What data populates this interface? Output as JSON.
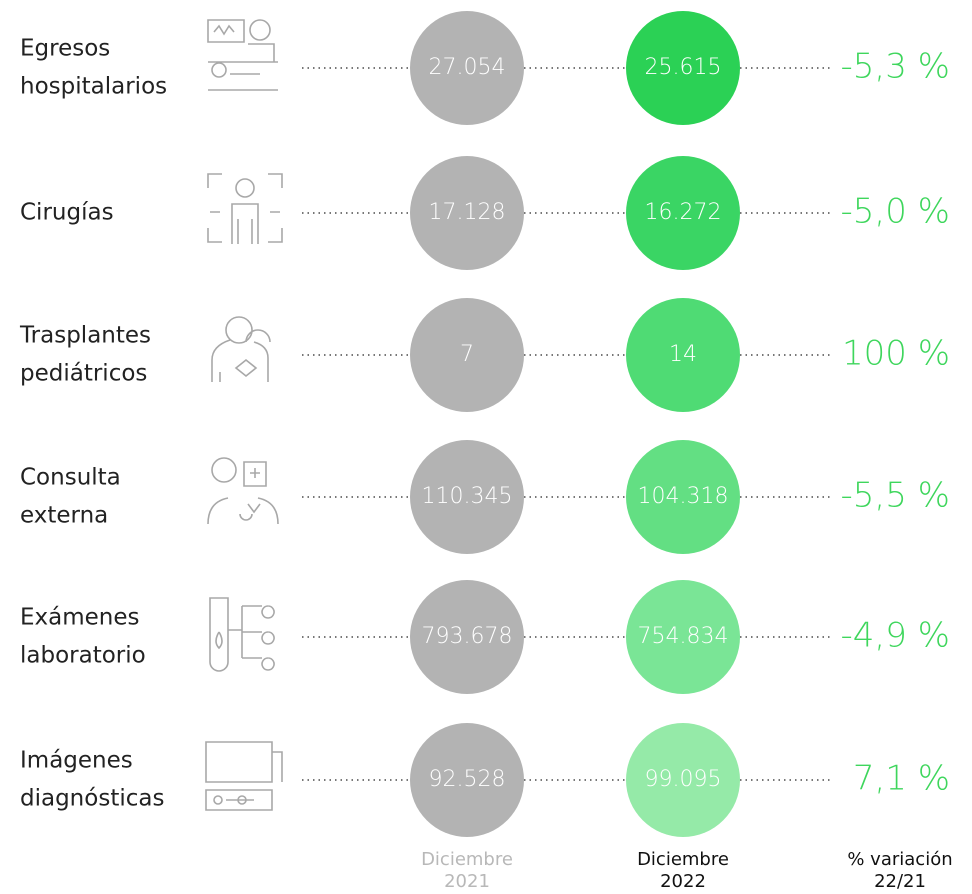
{
  "rows": [
    {
      "label": [
        "Egresos",
        "hospitalarios"
      ],
      "v2021": "27.054",
      "v2022": "25.615",
      "variation": "-5,3 %"
    },
    {
      "label": [
        "Cirugías"
      ],
      "v2021": "17.128",
      "v2022": "16.272",
      "variation": "-5,0 %"
    },
    {
      "label": [
        "Trasplantes",
        "pediátricos"
      ],
      "v2021": "7",
      "v2022": "14",
      "variation": "100 %"
    },
    {
      "label": [
        "Consulta",
        "externa"
      ],
      "v2021": "110.345",
      "v2022": "104.318",
      "variation": "-5,5 %"
    },
    {
      "label": [
        "Exámenes",
        "laboratorio"
      ],
      "v2021": "793.678",
      "v2022": "754.834",
      "variation": "-4,9 %"
    },
    {
      "label": [
        "Imágenes",
        "diagnósticas"
      ],
      "v2021": "92.528",
      "v2022": "99.095",
      "variation": "7,1 %"
    }
  ],
  "columns": {
    "c2021": [
      "Diciembre",
      "2021"
    ],
    "c2022": [
      "Diciembre",
      "2022"
    ],
    "variation": [
      "% variación",
      "22/21"
    ]
  }
}
